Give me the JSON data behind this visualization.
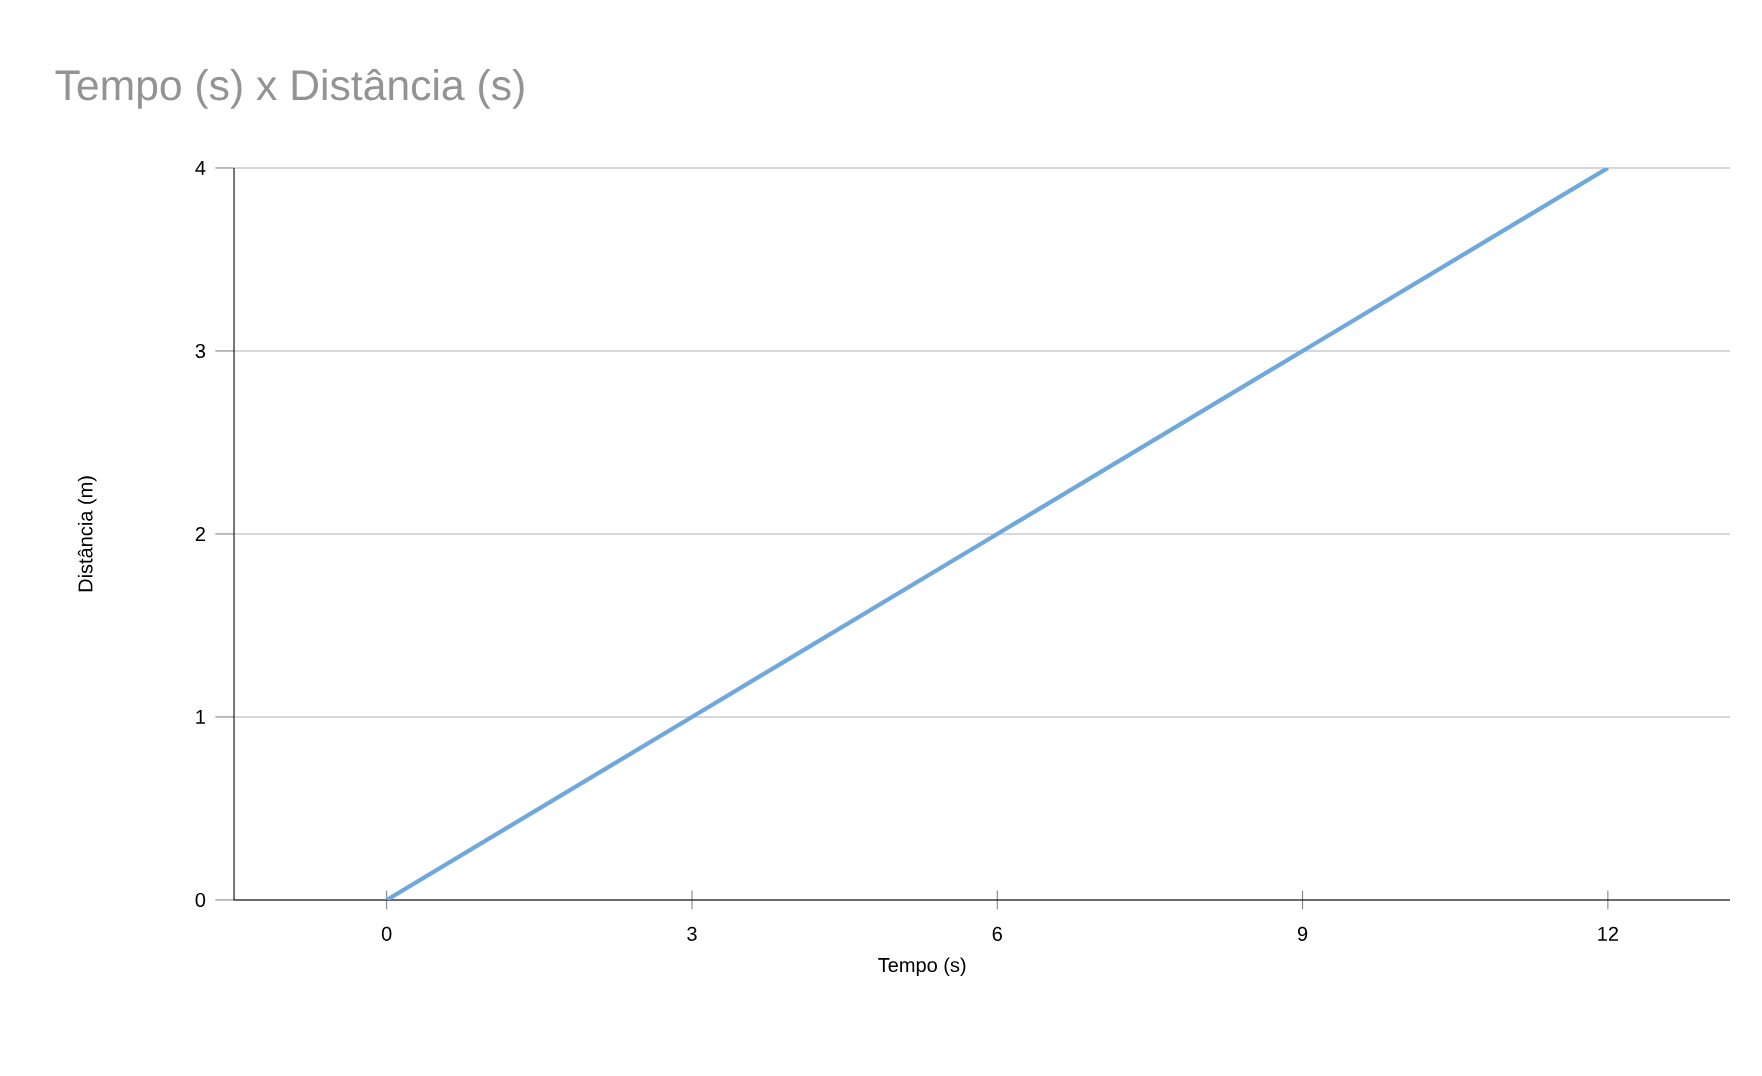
{
  "chart_data": {
    "type": "line",
    "title": "Tempo (s) x Distância (s)",
    "xlabel": "Tempo (s)",
    "ylabel": "Distância (m)",
    "x": [
      0,
      3,
      6,
      9,
      12
    ],
    "values": [
      0,
      1,
      2,
      3,
      4
    ],
    "color": "#6fa8dc",
    "xlim": [
      -1.5,
      13.2
    ],
    "ylim": [
      0,
      4
    ],
    "xticks": [
      0,
      3,
      6,
      9,
      12
    ],
    "yticks": [
      0,
      1,
      2,
      3,
      4
    ],
    "grid": "y",
    "marker": "none",
    "line_style": "solid"
  }
}
